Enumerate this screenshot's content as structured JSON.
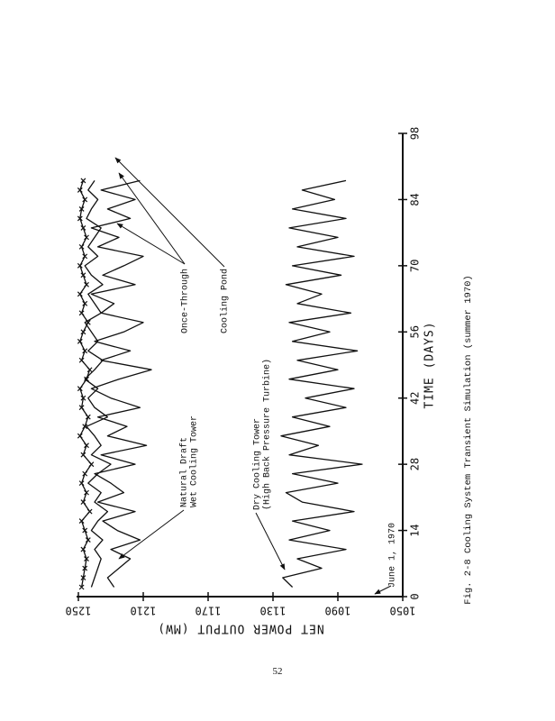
{
  "chart_data": {
    "type": "line",
    "xlabel": "TIME (DAYS)",
    "ylabel": "NET POWER OUTPUT (MW)",
    "xlim": [
      0,
      98
    ],
    "xticks": [
      0,
      14,
      28,
      42,
      56,
      70,
      84,
      98
    ],
    "ylim": [
      1050,
      1250
    ],
    "yticks": [
      1050,
      1090,
      1130,
      1170,
      1210,
      1250
    ],
    "x": [
      2,
      4,
      6,
      8,
      10,
      12,
      14,
      16,
      18,
      20,
      22,
      24,
      26,
      28,
      30,
      32,
      34,
      36,
      38,
      40,
      42,
      44,
      46,
      48,
      50,
      52,
      54,
      56,
      58,
      60,
      62,
      64,
      66,
      68,
      70,
      72,
      74,
      76,
      78,
      80,
      82,
      84,
      86,
      88
    ],
    "series": [
      {
        "name": [
          "Once-Through"
        ],
        "color": "#111111",
        "marker": "x",
        "values": [
          1248,
          1247,
          1246,
          1245,
          1247,
          1244,
          1246,
          1248,
          1243,
          1247,
          1245,
          1248,
          1246,
          1242,
          1247,
          1245,
          1249,
          1246,
          1244,
          1248,
          1247,
          1249,
          1245,
          1243,
          1248,
          1246,
          1249,
          1247,
          1244,
          1248,
          1246,
          1249,
          1245,
          1247,
          1249,
          1246,
          1248,
          1245,
          1247,
          1249,
          1248,
          1246,
          1249,
          1247
        ]
      },
      {
        "name": [
          "Cooling Pond"
        ],
        "color": "#111111",
        "values": [
          1242,
          1240,
          1238,
          1236,
          1240,
          1235,
          1242,
          1238,
          1232,
          1240,
          1236,
          1244,
          1238,
          1230,
          1242,
          1236,
          1240,
          1245,
          1232,
          1240,
          1244,
          1238,
          1246,
          1240,
          1235,
          1244,
          1238,
          1242,
          1246,
          1236,
          1240,
          1244,
          1235,
          1242,
          1246,
          1238,
          1244,
          1240,
          1236,
          1245,
          1242,
          1238,
          1244,
          1240
        ]
      },
      {
        "name": [
          "Natural Draft",
          "Wet Cooling Tower"
        ],
        "color": "#111111",
        "values": [
          1228,
          1232,
          1225,
          1218,
          1230,
          1212,
          1226,
          1235,
          1215,
          1238,
          1222,
          1230,
          1240,
          1215,
          1236,
          1208,
          1232,
          1220,
          1238,
          1212,
          1230,
          1242,
          1225,
          1205,
          1236,
          1218,
          1240,
          1222,
          1210,
          1236,
          1228,
          1242,
          1215,
          1235,
          1222,
          1210,
          1238,
          1225,
          1242,
          1218,
          1232,
          1215,
          1236,
          1212
        ]
      },
      {
        "name": [
          "Dry Cooling Tower",
          "(High Back Pressure Turbine)"
        ],
        "color": "#111111",
        "values": [
          1118,
          1124,
          1100,
          1115,
          1085,
          1120,
          1095,
          1118,
          1080,
          1112,
          1122,
          1090,
          1118,
          1075,
          1120,
          1102,
          1125,
          1095,
          1118,
          1085,
          1110,
          1080,
          1120,
          1090,
          1115,
          1078,
          1118,
          1095,
          1120,
          1082,
          1115,
          1100,
          1122,
          1088,
          1118,
          1080,
          1115,
          1090,
          1120,
          1085,
          1118,
          1092,
          1112,
          1085
        ]
      }
    ],
    "annotations": [
      {
        "text": "June 1, 1970"
      }
    ],
    "caption": "Fig. 2-8    Cooling System Transient Simulation (summer 1970)"
  },
  "page_number": "52"
}
